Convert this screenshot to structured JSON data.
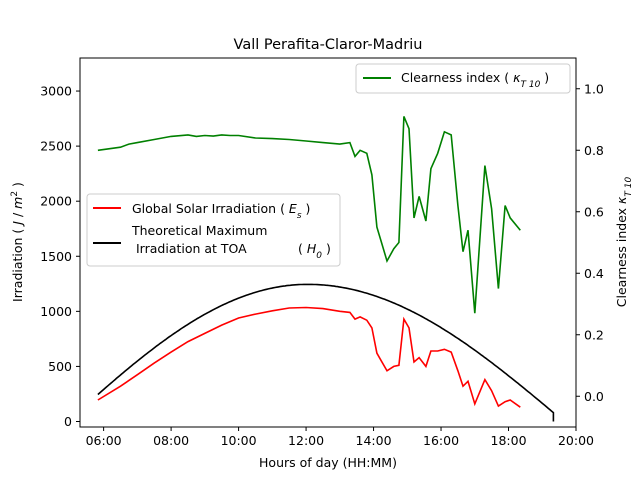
{
  "chart_data": {
    "type": "line",
    "title": "Vall Perafita-Claror-Madriu",
    "xlabel": "Hours of day (HH:MM)",
    "ylabel_left": "Irradiation ( J / m² )",
    "ylabel_right": "Clearness index κT 10",
    "xlim_hours": [
      5.3,
      20.0
    ],
    "ylim_left": [
      -50,
      3300
    ],
    "ylim_right": [
      -0.1,
      1.1
    ],
    "x_ticks": [
      "06:00",
      "08:00",
      "10:00",
      "12:00",
      "14:00",
      "16:00",
      "18:00",
      "20:00"
    ],
    "y_ticks_left": [
      "0",
      "500",
      "1000",
      "1500",
      "2000",
      "2500",
      "3000"
    ],
    "y_ticks_right": [
      "0.0",
      "0.2",
      "0.4",
      "0.6",
      "0.8",
      "1.0"
    ],
    "legend_upper": "top-right",
    "legend_lower": "center-left",
    "series": [
      {
        "name": "Global Solar Irradiation ( Es )",
        "name_main": "Global Solar Irradiation",
        "name_sym": "( Es )",
        "axis": "left",
        "color": "#ff0000",
        "x": [
          5.83,
          6.5,
          7.0,
          7.5,
          8.0,
          8.5,
          9.0,
          9.5,
          10.0,
          10.5,
          11.0,
          11.5,
          12.0,
          12.5,
          13.0,
          13.3,
          13.45,
          13.6,
          13.8,
          13.95,
          14.1,
          14.4,
          14.6,
          14.75,
          14.9,
          15.05,
          15.2,
          15.35,
          15.55,
          15.7,
          15.9,
          16.1,
          16.3,
          16.5,
          16.65,
          16.8,
          17.0,
          17.3,
          17.5,
          17.7,
          17.9,
          18.05,
          18.35
        ],
        "y": [
          195,
          320,
          425,
          530,
          630,
          725,
          800,
          875,
          940,
          975,
          1005,
          1030,
          1035,
          1025,
          1000,
          990,
          930,
          950,
          920,
          850,
          620,
          460,
          500,
          510,
          930,
          850,
          540,
          580,
          500,
          640,
          640,
          655,
          630,
          460,
          320,
          365,
          160,
          380,
          280,
          140,
          180,
          195,
          130
        ]
      },
      {
        "name": "Theoretical Maximum Irradiation at TOA ( H0 )",
        "name_line1": "Theoretical Maximum",
        "name_line2": "Irradiation at TOA",
        "name_sym": "( H0 )",
        "axis": "left",
        "color": "#000000",
        "sunrise_hour": 5.83,
        "sunset_hour": 19.33,
        "peak": 1245,
        "start_value": 245
      },
      {
        "name": "Clearness index ( κT 10 )",
        "name_main": "Clearness index",
        "name_sym": "( κT 10 )",
        "axis": "right",
        "color": "#008000",
        "x": [
          5.83,
          6.5,
          6.75,
          7.0,
          7.5,
          8.0,
          8.5,
          8.75,
          9.0,
          9.25,
          9.5,
          9.75,
          10.0,
          10.5,
          11.0,
          11.5,
          12.0,
          12.5,
          13.0,
          13.3,
          13.45,
          13.6,
          13.8,
          13.95,
          14.1,
          14.4,
          14.6,
          14.75,
          14.9,
          15.05,
          15.2,
          15.35,
          15.55,
          15.7,
          15.9,
          16.1,
          16.3,
          16.5,
          16.65,
          16.8,
          17.0,
          17.3,
          17.5,
          17.7,
          17.9,
          18.05,
          18.35
        ],
        "y": [
          0.8,
          0.81,
          0.82,
          0.825,
          0.835,
          0.845,
          0.85,
          0.845,
          0.848,
          0.846,
          0.85,
          0.848,
          0.848,
          0.84,
          0.838,
          0.835,
          0.83,
          0.825,
          0.82,
          0.825,
          0.78,
          0.8,
          0.79,
          0.72,
          0.55,
          0.44,
          0.48,
          0.5,
          0.91,
          0.87,
          0.58,
          0.65,
          0.57,
          0.74,
          0.79,
          0.86,
          0.85,
          0.62,
          0.47,
          0.54,
          0.27,
          0.75,
          0.61,
          0.35,
          0.62,
          0.58,
          0.54
        ]
      }
    ]
  }
}
